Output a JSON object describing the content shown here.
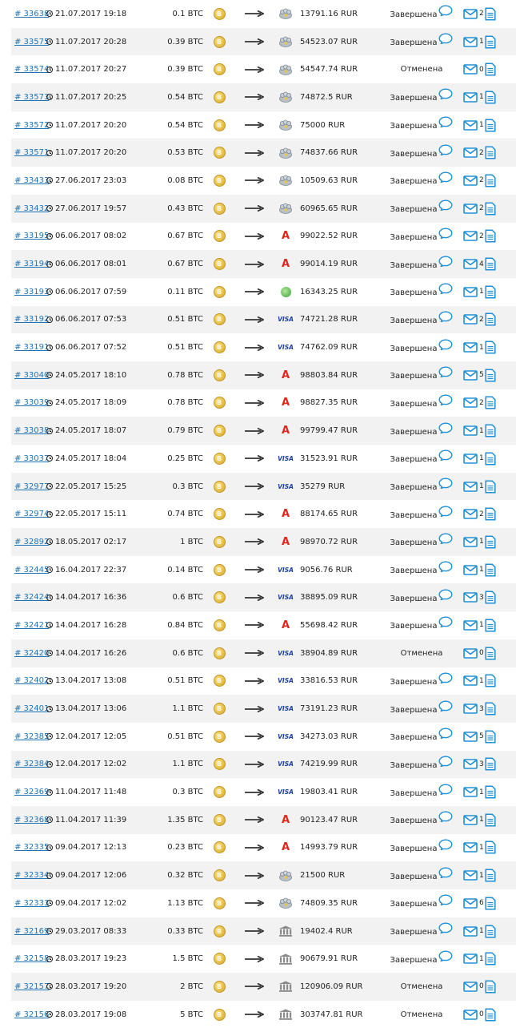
{
  "orders": [
    {
      "id": "# 33638",
      "datetime": "21.07.2017 19:18",
      "amount": "0.1 BTC",
      "method": "yandex",
      "rub": "13791.16 RUR",
      "status": "Завершена",
      "done": true,
      "messages": "2"
    },
    {
      "id": "# 33575",
      "datetime": "11.07.2017 20:28",
      "amount": "0.39 BTC",
      "method": "yandex",
      "rub": "54523.07 RUR",
      "status": "Завершена",
      "done": true,
      "messages": "1"
    },
    {
      "id": "# 33574",
      "datetime": "11.07.2017 20:27",
      "amount": "0.39 BTC",
      "method": "yandex",
      "rub": "54547.74 RUR",
      "status": "Отменена",
      "done": false,
      "messages": "0"
    },
    {
      "id": "# 33573",
      "datetime": "11.07.2017 20:25",
      "amount": "0.54 BTC",
      "method": "yandex",
      "rub": "74872.5 RUR",
      "status": "Завершена",
      "done": true,
      "messages": "1"
    },
    {
      "id": "# 33572",
      "datetime": "11.07.2017 20:20",
      "amount": "0.54 BTC",
      "method": "yandex",
      "rub": "75000 RUR",
      "status": "Завершена",
      "done": true,
      "messages": "1"
    },
    {
      "id": "# 33571",
      "datetime": "11.07.2017 20:20",
      "amount": "0.53 BTC",
      "method": "yandex",
      "rub": "74837.66 RUR",
      "status": "Завершена",
      "done": true,
      "messages": "2"
    },
    {
      "id": "# 33433",
      "datetime": "27.06.2017 23:03",
      "amount": "0.08 BTC",
      "method": "yandex",
      "rub": "10509.63 RUR",
      "status": "Завершена",
      "done": true,
      "messages": "2"
    },
    {
      "id": "# 33432",
      "datetime": "27.06.2017 19:57",
      "amount": "0.43 BTC",
      "method": "yandex",
      "rub": "60965.65 RUR",
      "status": "Завершена",
      "done": true,
      "messages": "2"
    },
    {
      "id": "# 33195",
      "datetime": "06.06.2017 08:02",
      "amount": "0.67 BTC",
      "method": "alfa",
      "rub": "99022.52 RUR",
      "status": "Завершена",
      "done": true,
      "messages": "2"
    },
    {
      "id": "# 33194",
      "datetime": "06.06.2017 08:01",
      "amount": "0.67 BTC",
      "method": "alfa",
      "rub": "99014.19 RUR",
      "status": "Завершена",
      "done": true,
      "messages": "4"
    },
    {
      "id": "# 33193",
      "datetime": "06.06.2017 07:59",
      "amount": "0.11 BTC",
      "method": "sber",
      "rub": "16343.25 RUR",
      "status": "Завершена",
      "done": true,
      "messages": "1"
    },
    {
      "id": "# 33192",
      "datetime": "06.06.2017 07:53",
      "amount": "0.51 BTC",
      "method": "visa",
      "rub": "74721.28 RUR",
      "status": "Завершена",
      "done": true,
      "messages": "2"
    },
    {
      "id": "# 33191",
      "datetime": "06.06.2017 07:52",
      "amount": "0.51 BTC",
      "method": "visa",
      "rub": "74762.09 RUR",
      "status": "Завершена",
      "done": true,
      "messages": "1"
    },
    {
      "id": "# 33040",
      "datetime": "24.05.2017 18:10",
      "amount": "0.78 BTC",
      "method": "alfa",
      "rub": "98803.84 RUR",
      "status": "Завершена",
      "done": true,
      "messages": "5"
    },
    {
      "id": "# 33039",
      "datetime": "24.05.2017 18:09",
      "amount": "0.78 BTC",
      "method": "alfa",
      "rub": "98827.35 RUR",
      "status": "Завершена",
      "done": true,
      "messages": "2"
    },
    {
      "id": "# 33038",
      "datetime": "24.05.2017 18:07",
      "amount": "0.79 BTC",
      "method": "alfa",
      "rub": "99799.47 RUR",
      "status": "Завершена",
      "done": true,
      "messages": "1"
    },
    {
      "id": "# 33037",
      "datetime": "24.05.2017 18:04",
      "amount": "0.25 BTC",
      "method": "visa",
      "rub": "31523.91 RUR",
      "status": "Завершена",
      "done": true,
      "messages": "1"
    },
    {
      "id": "# 32977",
      "datetime": "22.05.2017 15:25",
      "amount": "0.3 BTC",
      "method": "visa",
      "rub": "35279 RUR",
      "status": "Завершена",
      "done": true,
      "messages": "1"
    },
    {
      "id": "# 32974",
      "datetime": "22.05.2017 15:11",
      "amount": "0.74 BTC",
      "method": "alfa",
      "rub": "88174.65 RUR",
      "status": "Завершена",
      "done": true,
      "messages": "2"
    },
    {
      "id": "# 32892",
      "datetime": "18.05.2017 02:17",
      "amount": "1 BTC",
      "method": "alfa",
      "rub": "98970.72 RUR",
      "status": "Завершена",
      "done": true,
      "messages": "1"
    },
    {
      "id": "# 32445",
      "datetime": "16.04.2017 22:37",
      "amount": "0.14 BTC",
      "method": "visa",
      "rub": "9056.76 RUR",
      "status": "Завершена",
      "done": true,
      "messages": "1"
    },
    {
      "id": "# 32424",
      "datetime": "14.04.2017 16:36",
      "amount": "0.6 BTC",
      "method": "visa",
      "rub": "38895.09 RUR",
      "status": "Завершена",
      "done": true,
      "messages": "3"
    },
    {
      "id": "# 32421",
      "datetime": "14.04.2017 16:28",
      "amount": "0.84 BTC",
      "method": "alfa",
      "rub": "55698.42 RUR",
      "status": "Завершена",
      "done": true,
      "messages": "1"
    },
    {
      "id": "# 32420",
      "datetime": "14.04.2017 16:26",
      "amount": "0.6 BTC",
      "method": "visa",
      "rub": "38904.89 RUR",
      "status": "Отменена",
      "done": false,
      "messages": "0"
    },
    {
      "id": "# 32402",
      "datetime": "13.04.2017 13:08",
      "amount": "0.51 BTC",
      "method": "visa",
      "rub": "33816.53 RUR",
      "status": "Завершена",
      "done": true,
      "messages": "1"
    },
    {
      "id": "# 32401",
      "datetime": "13.04.2017 13:06",
      "amount": "1.1 BTC",
      "method": "visa",
      "rub": "73191.23 RUR",
      "status": "Завершена",
      "done": true,
      "messages": "3"
    },
    {
      "id": "# 32385",
      "datetime": "12.04.2017 12:05",
      "amount": "0.51 BTC",
      "method": "visa",
      "rub": "34273.03 RUR",
      "status": "Завершена",
      "done": true,
      "messages": "5"
    },
    {
      "id": "# 32384",
      "datetime": "12.04.2017 12:02",
      "amount": "1.1 BTC",
      "method": "visa",
      "rub": "74219.99 RUR",
      "status": "Завершена",
      "done": true,
      "messages": "3"
    },
    {
      "id": "# 32369",
      "datetime": "11.04.2017 11:48",
      "amount": "0.3 BTC",
      "method": "visa",
      "rub": "19803.41 RUR",
      "status": "Завершена",
      "done": true,
      "messages": "1"
    },
    {
      "id": "# 32368",
      "datetime": "11.04.2017 11:39",
      "amount": "1.35 BTC",
      "method": "alfa",
      "rub": "90123.47 RUR",
      "status": "Завершена",
      "done": true,
      "messages": "1"
    },
    {
      "id": "# 32335",
      "datetime": "09.04.2017 12:13",
      "amount": "0.23 BTC",
      "method": "alfa",
      "rub": "14993.79 RUR",
      "status": "Завершена",
      "done": true,
      "messages": "1"
    },
    {
      "id": "# 32334",
      "datetime": "09.04.2017 12:06",
      "amount": "0.32 BTC",
      "method": "yandex",
      "rub": "21500 RUR",
      "status": "Завершена",
      "done": true,
      "messages": "1"
    },
    {
      "id": "# 32333",
      "datetime": "09.04.2017 12:02",
      "amount": "1.13 BTC",
      "method": "yandex",
      "rub": "74809.35 RUR",
      "status": "Завершена",
      "done": true,
      "messages": "6"
    },
    {
      "id": "# 32169",
      "datetime": "29.03.2017 08:33",
      "amount": "0.33 BTC",
      "method": "bank",
      "rub": "19402.4 RUR",
      "status": "Завершена",
      "done": true,
      "messages": "1"
    },
    {
      "id": "# 32158",
      "datetime": "28.03.2017 19:23",
      "amount": "1.5 BTC",
      "method": "bank",
      "rub": "90679.91 RUR",
      "status": "Завершена",
      "done": true,
      "messages": "1"
    },
    {
      "id": "# 32157",
      "datetime": "28.03.2017 19:20",
      "amount": "2 BTC",
      "method": "bank",
      "rub": "120906.09 RUR",
      "status": "Отменена",
      "done": false,
      "messages": "0"
    },
    {
      "id": "# 32156",
      "datetime": "28.03.2017 19:08",
      "amount": "5 BTC",
      "method": "bank",
      "rub": "303747.81 RUR",
      "status": "Отменена",
      "done": false,
      "messages": "0"
    }
  ],
  "icons": {
    "coin": "bitcoin-coin-icon",
    "arrow": "arrow-right-icon",
    "chat": "chat-bubble-icon",
    "mail": "envelope-icon",
    "doc": "document-icon"
  },
  "colors": {
    "link": "#1f73b7",
    "icon_blue": "#1f8fd6",
    "row_alt": "#f2f2f2",
    "alfa_red": "#e1261c",
    "visa_blue": "#1a3fa0"
  },
  "method_labels": {
    "visa": "VISA",
    "alfa": "A",
    "coin": "B"
  }
}
